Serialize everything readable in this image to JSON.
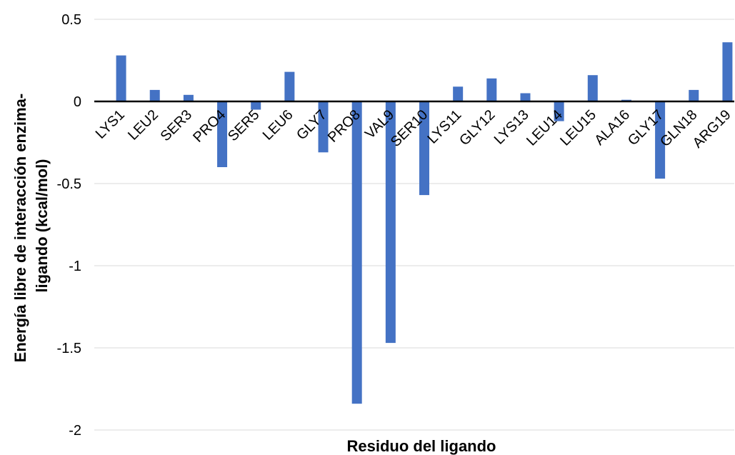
{
  "chart_data": {
    "type": "bar",
    "title": "",
    "xlabel": "Residuo del ligando",
    "ylabel_line1": "Energía libre de interacción enzima-",
    "ylabel_line2": "ligando (kcal/mol)",
    "ylim": [
      -2,
      0.5
    ],
    "yticks": [
      0.5,
      0,
      -0.5,
      -1,
      -1.5,
      -2
    ],
    "ytick_labels": [
      "0.5",
      "0",
      "-0.5",
      "-1",
      "-1.5",
      "-2"
    ],
    "grid": true,
    "legend": "none",
    "bar_color": "#4472c4",
    "categories": [
      "LYS1",
      "LEU2",
      "SER3",
      "PRO4",
      "SER5",
      "LEU6",
      "GLY7",
      "PRO8",
      "VAL9",
      "SER10",
      "LYS11",
      "GLY12",
      "LYS13",
      "LEU14",
      "LEU15",
      "ALA16",
      "GLY17",
      "GLN18",
      "ARG19"
    ],
    "values": [
      0.28,
      0.07,
      0.04,
      -0.4,
      -0.05,
      0.18,
      -0.31,
      -1.84,
      -1.47,
      -0.57,
      0.09,
      0.14,
      0.05,
      -0.12,
      0.16,
      0.01,
      -0.47,
      0.07,
      0.36
    ]
  }
}
